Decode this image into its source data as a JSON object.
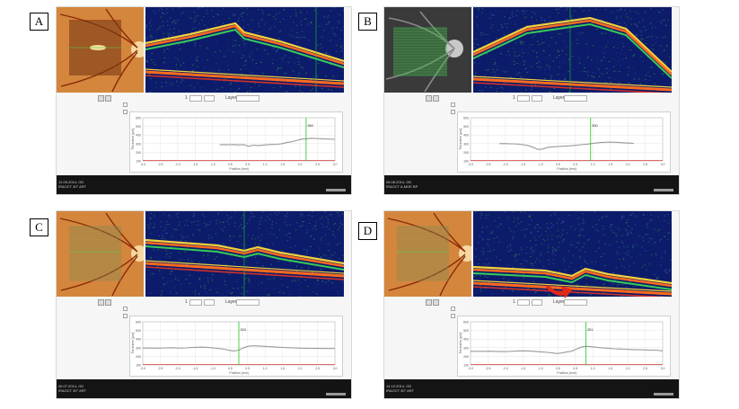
{
  "panels": [
    {
      "letter": "A",
      "fundus_style": "orange",
      "footer_date": "12.05.2014, OD",
      "footer_mode": "IR&OCT 30° ART",
      "plot_marker": "360",
      "plot_ylabel": "Thickness [µm]",
      "plot_xlabel": "Position [mm]",
      "plot_xticks": [
        "-3.0",
        "-2.5",
        "-2.0",
        "-1.5",
        "-1.0",
        "0.5",
        "0.5",
        "1.0",
        "1.5",
        "2.0",
        "2.5",
        "3.0"
      ],
      "plot_yticks": [
        "600",
        "500",
        "400",
        "300",
        "200",
        "100"
      ],
      "toolbar_size": "1",
      "toolbar_layer": "Layer",
      "thickness_profile": [
        null,
        null,
        null,
        null,
        null,
        null,
        null,
        null,
        null,
        null,
        null,
        null,
        null,
        null,
        null,
        null,
        288,
        290,
        287,
        290,
        285,
        290,
        270,
        282,
        278,
        283,
        289,
        291,
        293,
        300,
        312,
        322,
        335,
        352,
        356,
        362,
        360,
        357,
        354,
        352,
        350
      ]
    },
    {
      "letter": "B",
      "fundus_style": "gray",
      "footer_date": "08.08.2014, OD",
      "footer_mode": "IR&OCT 6-MOE BP",
      "plot_marker": "300",
      "plot_ylabel": "Thickness [µm]",
      "plot_xlabel": "Position [mm]",
      "plot_xticks": [
        "-3.0",
        "-2.5",
        "-2.0",
        "-1.5",
        "-1.0",
        "0.5",
        "0.5",
        "1.0",
        "1.5",
        "2.0",
        "2.5",
        "3.0"
      ],
      "plot_yticks": [
        "600",
        "500",
        "400",
        "300",
        "200",
        "100"
      ],
      "toolbar_size": "1",
      "toolbar_layer": "Layer",
      "thickness_profile": [
        null,
        null,
        null,
        null,
        null,
        null,
        300,
        301,
        299,
        298,
        295,
        288,
        278,
        258,
        232,
        238,
        255,
        262,
        266,
        270,
        273,
        276,
        281,
        287,
        292,
        300,
        306,
        312,
        316,
        318,
        316,
        313,
        309,
        306,
        302,
        null,
        null,
        null,
        null,
        null,
        null
      ]
    },
    {
      "letter": "C",
      "fundus_style": "orange",
      "footer_date": "06.07.2014, OD",
      "footer_mode": "IR&OCT 30° ART",
      "plot_marker": "324",
      "plot_ylabel": "Thickness [µm]",
      "plot_xlabel": "Position [mm]",
      "plot_xticks": [
        "-3.0",
        "-2.5",
        "-2.0",
        "-1.5",
        "-1.0",
        "0.5",
        "0.5",
        "1.0",
        "1.5",
        "2.0",
        "2.5",
        "3.0"
      ],
      "plot_yticks": [
        "600",
        "500",
        "400",
        "300",
        "200",
        "100"
      ],
      "toolbar_size": "1",
      "toolbar_layer": "Layer",
      "thickness_profile": [
        296,
        297,
        295,
        296,
        296,
        298,
        300,
        297,
        296,
        298,
        302,
        304,
        306,
        305,
        301,
        296,
        290,
        282,
        270,
        262,
        272,
        300,
        318,
        322,
        320,
        317,
        313,
        310,
        306,
        303,
        301,
        299,
        297,
        295,
        294,
        293,
        292,
        292,
        291,
        291,
        292
      ]
    },
    {
      "letter": "D",
      "fundus_style": "orange",
      "footer_date": "14.10.2014, OD",
      "footer_mode": "IR&OCT 30° ART",
      "plot_marker": "251",
      "plot_ylabel": "Thickness [µm]",
      "plot_xlabel": "Position [mm]",
      "plot_xticks": [
        "-3.0",
        "-2.5",
        "-2.0",
        "-1.5",
        "-1.0",
        "0.5",
        "0.5",
        "1.0",
        "1.5",
        "2.0",
        "2.5",
        "3.0"
      ],
      "plot_yticks": [
        "600",
        "500",
        "400",
        "300",
        "200",
        "100"
      ],
      "toolbar_size": "1",
      "toolbar_layer": "Layer",
      "thickness_profile": [
        258,
        258,
        257,
        258,
        259,
        257,
        255,
        254,
        256,
        259,
        262,
        264,
        262,
        258,
        254,
        250,
        246,
        240,
        232,
        240,
        250,
        258,
        282,
        306,
        316,
        312,
        306,
        300,
        296,
        292,
        288,
        285,
        282,
        280,
        278,
        276,
        275,
        273,
        272,
        270,
        262
      ]
    }
  ],
  "colors": {
    "oct_background": "#0c1c6a",
    "retina_orange": "#ff6a1e",
    "retina_yellow": "#f5d13a",
    "profile_line": "#9a9a9a",
    "marker_line": "#1ec81e",
    "baseline_red": "#e04040",
    "arrow_red": "#e02a18"
  },
  "icons": {
    "arrow": "red-curved-arrow-icon"
  }
}
